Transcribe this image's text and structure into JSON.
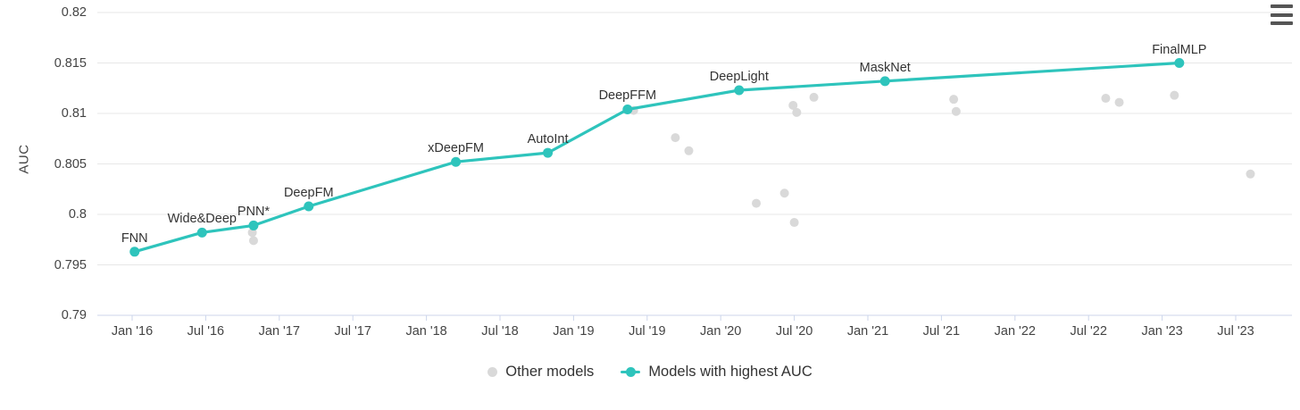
{
  "chart_data": {
    "type": "line",
    "title": "",
    "xlabel": "",
    "ylabel": "AUC",
    "ylim": [
      0.79,
      0.82
    ],
    "grid": "horizontal",
    "legend_position": "bottom-center",
    "y_ticks": [
      "0.82",
      "0.815",
      "0.81",
      "0.805",
      "0.8",
      "0.795",
      "0.79"
    ],
    "y_tick_values": [
      0.82,
      0.815,
      0.81,
      0.805,
      0.8,
      0.795,
      0.79
    ],
    "x_ticks": [
      "Jan '16",
      "Jul '16",
      "Jan '17",
      "Jul '17",
      "Jan '18",
      "Jul '18",
      "Jan '19",
      "Jul '19",
      "Jan '20",
      "Jul '20",
      "Jan '21",
      "Jul '21",
      "Jan '22",
      "Jul '22",
      "Jan '23",
      "Jul '23"
    ],
    "series": [
      {
        "name": "Models with highest AUC",
        "type": "line+marker",
        "color": "#2ec4bc",
        "points": [
          {
            "label": "FNN",
            "x_months": 0.2,
            "auc": 0.7963
          },
          {
            "label": "Wide&Deep",
            "x_months": 5.7,
            "auc": 0.7982
          },
          {
            "label": "PNN*",
            "x_months": 9.9,
            "auc": 0.7989
          },
          {
            "label": "DeepFM",
            "x_months": 14.4,
            "auc": 0.8008
          },
          {
            "label": "xDeepFM",
            "x_months": 26.4,
            "auc": 0.8052
          },
          {
            "label": "AutoInt",
            "x_months": 33.9,
            "auc": 0.8061
          },
          {
            "label": "DeepFFM",
            "x_months": 40.4,
            "auc": 0.8104
          },
          {
            "label": "DeepLight",
            "x_months": 49.5,
            "auc": 0.8123
          },
          {
            "label": "MaskNet",
            "x_months": 61.4,
            "auc": 0.8132
          },
          {
            "label": "FinalMLP",
            "x_months": 85.4,
            "auc": 0.815
          }
        ]
      },
      {
        "name": "Other models",
        "type": "scatter",
        "color": "#d9d9d9",
        "points": [
          {
            "x_months": 9.8,
            "auc": 0.7982
          },
          {
            "x_months": 9.9,
            "auc": 0.7974
          },
          {
            "x_months": 40.9,
            "auc": 0.8103
          },
          {
            "x_months": 44.3,
            "auc": 0.8076
          },
          {
            "x_months": 45.4,
            "auc": 0.8063
          },
          {
            "x_months": 50.9,
            "auc": 0.8011
          },
          {
            "x_months": 53.2,
            "auc": 0.8021
          },
          {
            "x_months": 53.9,
            "auc": 0.8108
          },
          {
            "x_months": 54.0,
            "auc": 0.7992
          },
          {
            "x_months": 54.2,
            "auc": 0.8101
          },
          {
            "x_months": 55.6,
            "auc": 0.8116
          },
          {
            "x_months": 67.0,
            "auc": 0.8114
          },
          {
            "x_months": 67.2,
            "auc": 0.8102
          },
          {
            "x_months": 79.4,
            "auc": 0.8115
          },
          {
            "x_months": 80.5,
            "auc": 0.8111
          },
          {
            "x_months": 85.0,
            "auc": 0.8118
          },
          {
            "x_months": 91.2,
            "auc": 0.804
          }
        ]
      }
    ]
  },
  "legend": {
    "items": [
      {
        "label": "Other models",
        "marker": "gray-dot"
      },
      {
        "label": "Models with highest AUC",
        "marker": "teal-line-dot"
      }
    ]
  },
  "controls": {
    "menu_icon": "hamburger-menu-icon"
  },
  "colors": {
    "highlight_series": "#2ec4bc",
    "other_models": "#d9d9d9",
    "gridline": "#e7e7e7",
    "axis_line": "#ccd6eb",
    "tick_label": "#444444",
    "point_label": "#333333",
    "legend_text": "#333333",
    "menu_icon": "#555555"
  }
}
